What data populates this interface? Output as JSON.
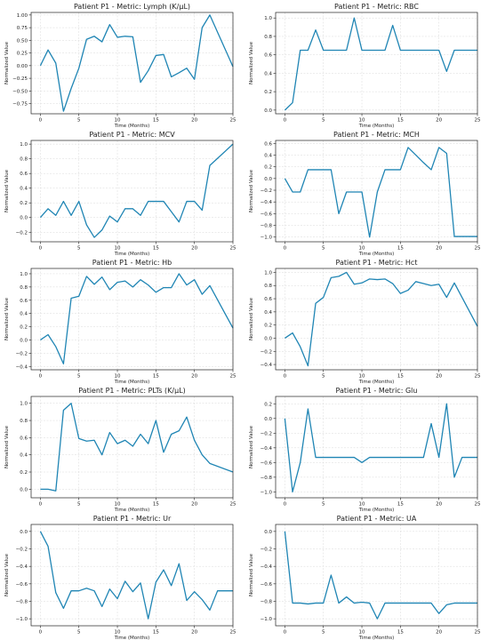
{
  "figure": {
    "line_color": "#1f85b4",
    "grid": true
  },
  "chart_data": [
    {
      "type": "line",
      "title": "Patient P1 - Metric: Lymph (K/μL)",
      "xlabel": "Time (Months)",
      "ylabel": "Normalized Value",
      "xlim": [
        -1.2,
        25
      ],
      "ylim": [
        -0.95,
        1.05
      ],
      "xticks": [
        0,
        5,
        10,
        15,
        20,
        25
      ],
      "yticks": [
        -0.75,
        -0.5,
        -0.25,
        0.0,
        0.25,
        0.5,
        0.75,
        1.0
      ],
      "yticklabels": [
        "−0.75",
        "−0.50",
        "−0.25",
        "0.00",
        "0.25",
        "0.50",
        "0.75",
        "1.00"
      ],
      "x": [
        0,
        1,
        2,
        3,
        4,
        5,
        6,
        7,
        8,
        9,
        10,
        11,
        12,
        13,
        14,
        15,
        16,
        17,
        18,
        19,
        20,
        21,
        22,
        25
      ],
      "y": [
        0.0,
        0.31,
        0.05,
        -0.9,
        -0.45,
        -0.05,
        0.52,
        0.58,
        0.47,
        0.81,
        0.56,
        0.58,
        0.57,
        -0.33,
        -0.1,
        0.2,
        0.22,
        -0.22,
        -0.14,
        -0.05,
        -0.27,
        0.75,
        1.0,
        -0.02
      ]
    },
    {
      "type": "line",
      "title": "Patient P1 - Metric: RBC",
      "xlabel": "Time (Months)",
      "ylabel": "Normalized Value",
      "xlim": [
        -1.2,
        25
      ],
      "ylim": [
        -0.04,
        1.06
      ],
      "xticks": [
        0,
        5,
        10,
        15,
        20,
        25
      ],
      "yticks": [
        0.0,
        0.2,
        0.4,
        0.6,
        0.8,
        1.0
      ],
      "yticklabels": [
        "0.0",
        "0.2",
        "0.4",
        "0.6",
        "0.8",
        "1.0"
      ],
      "x": [
        0,
        1,
        2,
        3,
        4,
        5,
        6,
        7,
        8,
        9,
        10,
        11,
        12,
        13,
        14,
        15,
        16,
        17,
        18,
        19,
        20,
        21,
        22,
        25
      ],
      "y": [
        0.0,
        0.08,
        0.65,
        0.65,
        0.87,
        0.65,
        0.65,
        0.65,
        0.65,
        1.0,
        0.65,
        0.65,
        0.65,
        0.65,
        0.92,
        0.65,
        0.65,
        0.65,
        0.65,
        0.65,
        0.65,
        0.42,
        0.65,
        0.65
      ]
    },
    {
      "type": "line",
      "title": "Patient P1 - Metric: MCV",
      "xlabel": "Time (Months)",
      "ylabel": "Normalized Value",
      "xlim": [
        -1.2,
        25
      ],
      "ylim": [
        -0.33,
        1.05
      ],
      "xticks": [
        0,
        5,
        10,
        15,
        20,
        25
      ],
      "yticks": [
        -0.2,
        0.0,
        0.2,
        0.4,
        0.6,
        0.8,
        1.0
      ],
      "yticklabels": [
        "−0.2",
        "0.0",
        "0.2",
        "0.4",
        "0.6",
        "0.8",
        "1.0"
      ],
      "x": [
        0,
        1,
        2,
        3,
        4,
        5,
        6,
        7,
        8,
        9,
        10,
        11,
        12,
        13,
        14,
        15,
        16,
        17,
        18,
        19,
        20,
        21,
        22,
        25
      ],
      "y": [
        0.0,
        0.12,
        0.03,
        0.22,
        0.03,
        0.22,
        -0.1,
        -0.27,
        -0.17,
        0.02,
        -0.06,
        0.12,
        0.12,
        0.03,
        0.22,
        0.22,
        0.22,
        0.08,
        -0.06,
        0.22,
        0.22,
        0.1,
        0.71,
        1.0
      ]
    },
    {
      "type": "line",
      "title": "Patient P1 - Metric: MCH",
      "xlabel": "Time (Months)",
      "ylabel": "Normalized Value",
      "xlim": [
        -1.2,
        25
      ],
      "ylim": [
        -1.08,
        0.65
      ],
      "xticks": [
        0,
        5,
        10,
        15,
        20,
        25
      ],
      "yticks": [
        -1.0,
        -0.8,
        -0.6,
        -0.4,
        -0.2,
        0.0,
        0.2,
        0.4,
        0.6
      ],
      "yticklabels": [
        "−1.0",
        "−0.8",
        "−0.6",
        "−0.4",
        "−0.2",
        "0.0",
        "0.2",
        "0.4",
        "0.6"
      ],
      "x": [
        0,
        1,
        2,
        3,
        4,
        5,
        6,
        7,
        8,
        9,
        10,
        11,
        12,
        13,
        14,
        15,
        16,
        17,
        18,
        19,
        20,
        21,
        22,
        25
      ],
      "y": [
        0.0,
        -0.23,
        -0.23,
        0.15,
        0.15,
        0.15,
        0.15,
        -0.6,
        -0.23,
        -0.23,
        -0.23,
        -1.0,
        -0.23,
        0.15,
        0.15,
        0.15,
        0.53,
        0.4,
        0.27,
        0.15,
        0.53,
        0.43,
        -0.99,
        -0.99
      ]
    },
    {
      "type": "line",
      "title": "Patient P1 - Metric: Hb",
      "xlabel": "Time (Months)",
      "ylabel": "Normalized Value",
      "xlim": [
        -1.2,
        25
      ],
      "ylim": [
        -0.45,
        1.08
      ],
      "xticks": [
        0,
        5,
        10,
        15,
        20,
        25
      ],
      "yticks": [
        -0.4,
        -0.2,
        0.0,
        0.2,
        0.4,
        0.6,
        0.8,
        1.0
      ],
      "yticklabels": [
        "−0.4",
        "−0.2",
        "0.0",
        "0.2",
        "0.4",
        "0.6",
        "0.8",
        "1.0"
      ],
      "x": [
        0,
        1,
        2,
        3,
        4,
        5,
        6,
        7,
        8,
        9,
        10,
        11,
        12,
        13,
        14,
        15,
        16,
        17,
        18,
        19,
        20,
        21,
        22,
        25
      ],
      "y": [
        0.0,
        0.08,
        -0.1,
        -0.36,
        0.63,
        0.66,
        0.96,
        0.84,
        0.95,
        0.76,
        0.87,
        0.89,
        0.8,
        0.91,
        0.83,
        0.72,
        0.79,
        0.79,
        1.0,
        0.83,
        0.91,
        0.69,
        0.82,
        0.18
      ]
    },
    {
      "type": "line",
      "title": "Patient P1 - Metric: Hct",
      "xlabel": "Time (Months)",
      "ylabel": "Normalized Value",
      "xlim": [
        -1.2,
        25
      ],
      "ylim": [
        -0.48,
        1.06
      ],
      "xticks": [
        0,
        5,
        10,
        15,
        20,
        25
      ],
      "yticks": [
        -0.4,
        -0.2,
        0.0,
        0.2,
        0.4,
        0.6,
        0.8,
        1.0
      ],
      "yticklabels": [
        "−0.4",
        "−0.2",
        "0.0",
        "0.2",
        "0.4",
        "0.6",
        "0.8",
        "1.0"
      ],
      "x": [
        0,
        1,
        2,
        3,
        4,
        5,
        6,
        7,
        8,
        9,
        10,
        11,
        12,
        13,
        14,
        15,
        16,
        17,
        18,
        19,
        20,
        21,
        22,
        25
      ],
      "y": [
        0.0,
        0.08,
        -0.13,
        -0.42,
        0.53,
        0.62,
        0.92,
        0.94,
        1.0,
        0.82,
        0.84,
        0.9,
        0.89,
        0.9,
        0.83,
        0.68,
        0.73,
        0.86,
        0.83,
        0.8,
        0.82,
        0.62,
        0.84,
        0.18
      ]
    },
    {
      "type": "line",
      "title": "Patient P1 - Metric: PLTs (K/μL)",
      "xlabel": "Time (Months)",
      "ylabel": "Normalized Value",
      "xlim": [
        -1.2,
        25
      ],
      "ylim": [
        -0.1,
        1.08
      ],
      "xticks": [
        0,
        5,
        10,
        15,
        20,
        25
      ],
      "yticks": [
        0.0,
        0.2,
        0.4,
        0.6,
        0.8,
        1.0
      ],
      "yticklabels": [
        "0.0",
        "0.2",
        "0.4",
        "0.6",
        "0.8",
        "1.0"
      ],
      "x": [
        0,
        1,
        2,
        3,
        4,
        5,
        6,
        7,
        8,
        9,
        10,
        11,
        12,
        13,
        14,
        15,
        16,
        17,
        18,
        19,
        20,
        21,
        22,
        25
      ],
      "y": [
        0.0,
        0.0,
        -0.02,
        0.92,
        1.0,
        0.59,
        0.56,
        0.57,
        0.4,
        0.66,
        0.53,
        0.57,
        0.5,
        0.64,
        0.53,
        0.8,
        0.43,
        0.64,
        0.68,
        0.84,
        0.57,
        0.4,
        0.3,
        0.2
      ]
    },
    {
      "type": "line",
      "title": "Patient P1 - Metric: Glu",
      "xlabel": "Time (Months)",
      "ylabel": "Normalized Value",
      "xlim": [
        -1.2,
        25
      ],
      "ylim": [
        -1.08,
        0.3
      ],
      "xticks": [
        0,
        5,
        10,
        15,
        20,
        25
      ],
      "yticks": [
        -1.0,
        -0.8,
        -0.6,
        -0.4,
        -0.2,
        0.0,
        0.2
      ],
      "yticklabels": [
        "−1.0",
        "−0.8",
        "−0.6",
        "−0.4",
        "−0.2",
        "0.0",
        "0.2"
      ],
      "x": [
        0,
        1,
        2,
        3,
        4,
        5,
        6,
        7,
        8,
        9,
        10,
        11,
        12,
        13,
        14,
        15,
        16,
        17,
        18,
        19,
        20,
        21,
        22,
        23,
        25
      ],
      "y": [
        0.0,
        -1.0,
        -0.6,
        0.13,
        -0.53,
        -0.53,
        -0.53,
        -0.53,
        -0.53,
        -0.53,
        -0.6,
        -0.53,
        -0.53,
        -0.53,
        -0.53,
        -0.53,
        -0.53,
        -0.53,
        -0.53,
        -0.07,
        -0.53,
        0.2,
        -0.8,
        -0.53,
        -0.53
      ]
    },
    {
      "type": "line",
      "title": "Patient P1 - Metric: Ur",
      "xlabel": "Time (Months)",
      "ylabel": "Normalized Value",
      "xlim": [
        -1.2,
        25
      ],
      "ylim": [
        -1.08,
        0.08
      ],
      "xticks": [
        0,
        5,
        10,
        15,
        20,
        25
      ],
      "yticks": [
        -1.0,
        -0.8,
        -0.6,
        -0.4,
        -0.2,
        0.0
      ],
      "yticklabels": [
        "−1.0",
        "−0.8",
        "−0.6",
        "−0.4",
        "−0.2",
        "0.0"
      ],
      "x": [
        0,
        1,
        2,
        3,
        4,
        5,
        6,
        7,
        8,
        9,
        10,
        11,
        12,
        13,
        14,
        15,
        16,
        17,
        18,
        19,
        20,
        21,
        22,
        23,
        25
      ],
      "y": [
        0.0,
        -0.17,
        -0.7,
        -0.88,
        -0.68,
        -0.68,
        -0.65,
        -0.68,
        -0.86,
        -0.66,
        -0.77,
        -0.57,
        -0.69,
        -0.59,
        -1.0,
        -0.58,
        -0.44,
        -0.62,
        -0.37,
        -0.79,
        -0.69,
        -0.78,
        -0.9,
        -0.68,
        -0.68
      ]
    },
    {
      "type": "line",
      "title": "Patient P1 - Metric: UA",
      "xlabel": "Time (Months)",
      "ylabel": "Normalized Value",
      "xlim": [
        -1.2,
        25
      ],
      "ylim": [
        -1.08,
        0.08
      ],
      "xticks": [
        0,
        5,
        10,
        15,
        20,
        25
      ],
      "yticks": [
        -1.0,
        -0.8,
        -0.6,
        -0.4,
        -0.2,
        0.0
      ],
      "yticklabels": [
        "−1.0",
        "−0.8",
        "−0.6",
        "−0.4",
        "−0.2",
        "0.0"
      ],
      "x": [
        0,
        1,
        2,
        3,
        4,
        5,
        6,
        7,
        8,
        9,
        10,
        11,
        12,
        13,
        14,
        15,
        16,
        17,
        18,
        19,
        20,
        21,
        22,
        23,
        25
      ],
      "y": [
        0.0,
        -0.82,
        -0.82,
        -0.83,
        -0.82,
        -0.82,
        -0.5,
        -0.82,
        -0.75,
        -0.82,
        -0.81,
        -0.82,
        -1.0,
        -0.82,
        -0.82,
        -0.82,
        -0.82,
        -0.82,
        -0.82,
        -0.82,
        -0.94,
        -0.84,
        -0.82,
        -0.82,
        -0.82
      ]
    }
  ]
}
